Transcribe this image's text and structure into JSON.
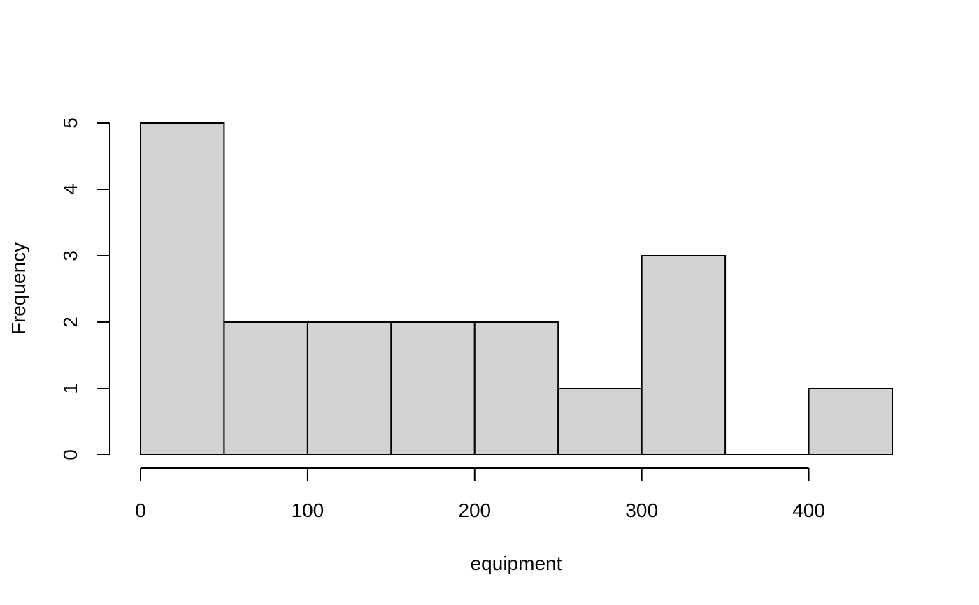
{
  "chart_data": {
    "type": "bar",
    "variant": "histogram",
    "title": "",
    "xlabel": "equipment",
    "ylabel": "Frequency",
    "bins": [
      {
        "x0": 0,
        "x1": 50,
        "count": 5
      },
      {
        "x0": 50,
        "x1": 100,
        "count": 2
      },
      {
        "x0": 100,
        "x1": 150,
        "count": 2
      },
      {
        "x0": 150,
        "x1": 200,
        "count": 2
      },
      {
        "x0": 200,
        "x1": 250,
        "count": 2
      },
      {
        "x0": 250,
        "x1": 300,
        "count": 1
      },
      {
        "x0": 300,
        "x1": 350,
        "count": 3
      },
      {
        "x0": 350,
        "x1": 400,
        "count": 0
      },
      {
        "x0": 400,
        "x1": 450,
        "count": 1
      }
    ],
    "xlim": [
      0,
      450
    ],
    "ylim": [
      0,
      5
    ],
    "x_ticks": [
      0,
      100,
      200,
      300,
      400
    ],
    "y_ticks": [
      0,
      1,
      2,
      3,
      4,
      5
    ],
    "bar_color": "#d3d3d3",
    "grid": false,
    "legend": "none"
  }
}
